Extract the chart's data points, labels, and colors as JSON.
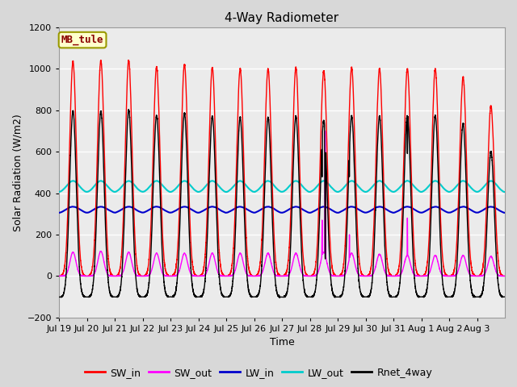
{
  "title": "4-Way Radiometer",
  "xlabel": "Time",
  "ylabel": "Solar Radiation (W/m2)",
  "ylim": [
    -200,
    1200
  ],
  "n_days": 16,
  "xtick_labels": [
    "Jul 19",
    "Jul 20",
    "Jul 21",
    "Jul 22",
    "Jul 23",
    "Jul 24",
    "Jul 25",
    "Jul 26",
    "Jul 27",
    "Jul 28",
    "Jul 29",
    "Jul 30",
    "Jul 31",
    "Aug 1",
    "Aug 2",
    "Aug 3"
  ],
  "station_label": "MB_tule",
  "station_label_color": "#8B0000",
  "station_box_facecolor": "#FFFFCC",
  "station_box_edgecolor": "#999900",
  "colors": {
    "SW_in": "#FF0000",
    "SW_out": "#FF00FF",
    "LW_in": "#0000CC",
    "LW_out": "#00CCCC",
    "Rnet_4way": "#000000"
  },
  "linewidths": {
    "SW_in": 1.0,
    "SW_out": 1.0,
    "LW_in": 1.5,
    "LW_out": 1.5,
    "Rnet_4way": 1.0
  },
  "background_color": "#D8D8D8",
  "plot_bg_color": "#EBEBEB",
  "grid_color": "#FFFFFF",
  "title_fontsize": 11,
  "label_fontsize": 9,
  "tick_fontsize": 8,
  "legend_fontsize": 9
}
